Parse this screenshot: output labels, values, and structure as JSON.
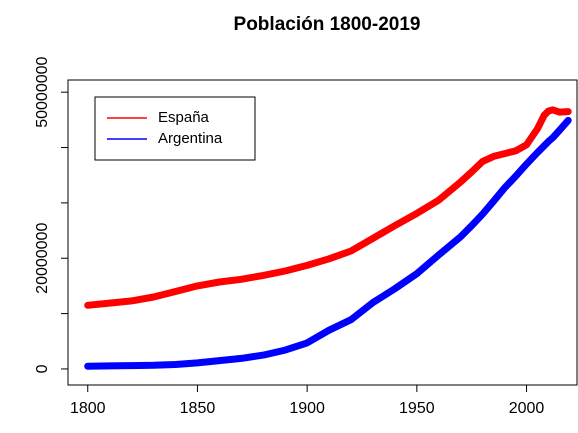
{
  "chart_data": {
    "type": "line",
    "title": "Población 1800-2019",
    "x": [
      1800,
      1810,
      1820,
      1830,
      1840,
      1850,
      1860,
      1870,
      1880,
      1890,
      1900,
      1910,
      1920,
      1930,
      1940,
      1950,
      1960,
      1970,
      1975,
      1980,
      1985,
      1990,
      1995,
      2000,
      2005,
      2008,
      2010,
      2012,
      2015,
      2019
    ],
    "series": [
      {
        "name": "España",
        "color": "#ff0000",
        "values": [
          11500000,
          11900000,
          12300000,
          13000000,
          14000000,
          15000000,
          15700000,
          16200000,
          16900000,
          17700000,
          18700000,
          19900000,
          21300000,
          23600000,
          25900000,
          28100000,
          30500000,
          33800000,
          35600000,
          37500000,
          38400000,
          38900000,
          39400000,
          40500000,
          43400000,
          45800000,
          46600000,
          46800000,
          46400000,
          46500000
        ]
      },
      {
        "name": "Argentina",
        "color": "#0000ff",
        "values": [
          500000,
          550000,
          600000,
          650000,
          800000,
          1100000,
          1500000,
          1900000,
          2500000,
          3400000,
          4700000,
          7000000,
          8900000,
          12000000,
          14500000,
          17200000,
          20600000,
          23900000,
          25900000,
          28000000,
          30300000,
          32700000,
          34800000,
          37000000,
          39100000,
          40300000,
          41100000,
          41800000,
          43100000,
          44900000
        ]
      }
    ],
    "xlim": [
      1791,
      2023
    ],
    "xticks": [
      1800,
      1850,
      1900,
      1950,
      2000
    ],
    "ylim": [
      -2900000,
      52200000
    ],
    "yticks": [
      0,
      20000000,
      50000000
    ],
    "yminor_ticks": [
      10000000,
      30000000,
      40000000
    ],
    "legend": "topleft"
  }
}
